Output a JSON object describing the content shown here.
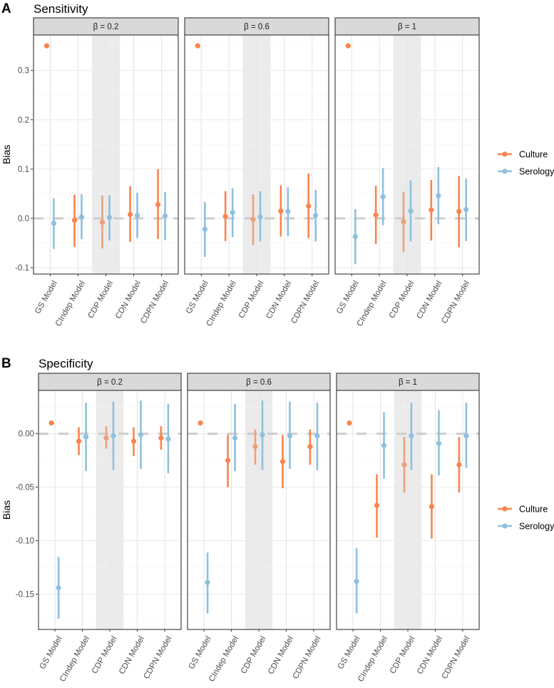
{
  "colors": {
    "culture": "#F8844E",
    "culture_in_band": "#EBA07C",
    "serology": "#8EC0DE",
    "band": "#EBEBEB",
    "zero_line": "#CCCCCC"
  },
  "legend": {
    "culture": "Culture",
    "serology": "Serology"
  },
  "chart_data": [
    {
      "type": "scatter",
      "panel_label": "A",
      "title": "Sensitivity",
      "ylabel": "Bias",
      "ylim": [
        -0.113,
        0.372
      ],
      "yticks": [
        -0.1,
        0.0,
        0.1,
        0.2,
        0.3
      ],
      "ytick_labels": [
        "-0.1",
        "0.0",
        "0.1",
        "0.2",
        "0.3"
      ],
      "categories": [
        "GS Model",
        "CIndep Model",
        "CDP Model",
        "CDN Model",
        "CDPN Model"
      ],
      "highlight_category": "CDP Model",
      "reference_line": 0,
      "legend_position": "right",
      "facets": [
        {
          "label": "β = 0.2",
          "series": [
            {
              "name": "Culture",
              "est": [
                0.35,
                -0.004,
                -0.008,
                0.008,
                0.028
              ],
              "lo": [
                null,
                -0.058,
                -0.061,
                -0.048,
                -0.042
              ],
              "hi": [
                null,
                0.048,
                0.046,
                0.065,
                0.1
              ]
            },
            {
              "name": "Serology",
              "est": [
                -0.01,
                0.003,
                0.002,
                0.006,
                0.005
              ],
              "lo": [
                -0.062,
                -0.042,
                -0.045,
                -0.04,
                -0.044
              ],
              "hi": [
                0.041,
                0.049,
                0.047,
                0.052,
                0.053
              ]
            }
          ]
        },
        {
          "label": "β = 0.6",
          "series": [
            {
              "name": "Culture",
              "est": [
                0.35,
                0.004,
                -0.002,
                0.015,
                0.025
              ],
              "lo": [
                null,
                -0.046,
                -0.054,
                -0.037,
                -0.04
              ],
              "hi": [
                null,
                0.055,
                0.049,
                0.067,
                0.091
              ]
            },
            {
              "name": "Serology",
              "est": [
                -0.022,
                0.012,
                0.003,
                0.014,
                0.006
              ],
              "lo": [
                -0.078,
                -0.038,
                -0.047,
                -0.036,
                -0.047
              ],
              "hi": [
                0.033,
                0.061,
                0.055,
                0.063,
                0.058
              ]
            }
          ]
        },
        {
          "label": "β = 1",
          "series": [
            {
              "name": "Culture",
              "est": [
                0.35,
                0.007,
                -0.007,
                0.017,
                0.014
              ],
              "lo": [
                null,
                -0.052,
                -0.068,
                -0.045,
                -0.059
              ],
              "hi": [
                null,
                0.066,
                0.054,
                0.078,
                0.086
              ]
            },
            {
              "name": "Serology",
              "est": [
                -0.037,
                0.044,
                0.015,
                0.046,
                0.018
              ],
              "lo": [
                -0.093,
                -0.014,
                -0.047,
                -0.012,
                -0.046
              ],
              "hi": [
                0.019,
                0.102,
                0.077,
                0.104,
                0.081
              ]
            }
          ]
        }
      ]
    },
    {
      "type": "scatter",
      "panel_label": "B",
      "title": "Specificity",
      "ylabel": "Bias",
      "ylim": [
        -0.183,
        0.0405
      ],
      "yticks": [
        -0.15,
        -0.1,
        -0.05,
        0.0
      ],
      "ytick_labels": [
        "-0.15",
        "-0.10",
        "-0.05",
        "0.00"
      ],
      "categories": [
        "GS Model",
        "CIndep Model",
        "CDP Model",
        "CDN Model",
        "CDPN Model"
      ],
      "highlight_category": "CDP Model",
      "reference_line": 0,
      "legend_position": "right",
      "facets": [
        {
          "label": "β = 0.2",
          "series": [
            {
              "name": "Culture",
              "est": [
                0.01,
                -0.007,
                -0.004,
                -0.007,
                -0.004
              ],
              "lo": [
                null,
                -0.02,
                -0.014,
                -0.021,
                -0.015
              ],
              "hi": [
                null,
                0.006,
                0.007,
                0.006,
                0.007
              ]
            },
            {
              "name": "Serology",
              "est": [
                -0.144,
                -0.003,
                -0.002,
                -0.001,
                -0.005
              ],
              "lo": [
                -0.173,
                -0.035,
                -0.034,
                -0.033,
                -0.037
              ],
              "hi": [
                -0.115,
                0.029,
                0.03,
                0.031,
                0.028
              ]
            }
          ]
        },
        {
          "label": "β = 0.6",
          "series": [
            {
              "name": "Culture",
              "est": [
                0.01,
                -0.025,
                -0.012,
                -0.026,
                -0.012
              ],
              "lo": [
                null,
                -0.05,
                -0.029,
                -0.051,
                -0.029
              ],
              "hi": [
                null,
                -0.001,
                0.004,
                -0.001,
                0.004
              ]
            },
            {
              "name": "Serology",
              "est": [
                -0.139,
                -0.004,
                -0.001,
                -0.002,
                -0.002
              ],
              "lo": [
                -0.168,
                -0.035,
                -0.034,
                -0.033,
                -0.034
              ],
              "hi": [
                -0.111,
                0.028,
                0.031,
                0.03,
                0.029
              ]
            }
          ]
        },
        {
          "label": "β = 1",
          "series": [
            {
              "name": "Culture",
              "est": [
                0.01,
                -0.067,
                -0.029,
                -0.068,
                -0.029
              ],
              "lo": [
                null,
                -0.097,
                -0.055,
                -0.098,
                -0.055
              ],
              "hi": [
                null,
                -0.038,
                -0.003,
                -0.038,
                -0.003
              ]
            },
            {
              "name": "Serology",
              "est": [
                -0.138,
                -0.011,
                -0.002,
                -0.009,
                -0.002
              ],
              "lo": [
                -0.168,
                -0.042,
                -0.034,
                -0.039,
                -0.032
              ],
              "hi": [
                -0.107,
                0.02,
                0.029,
                0.022,
                0.029
              ]
            }
          ]
        }
      ]
    }
  ]
}
